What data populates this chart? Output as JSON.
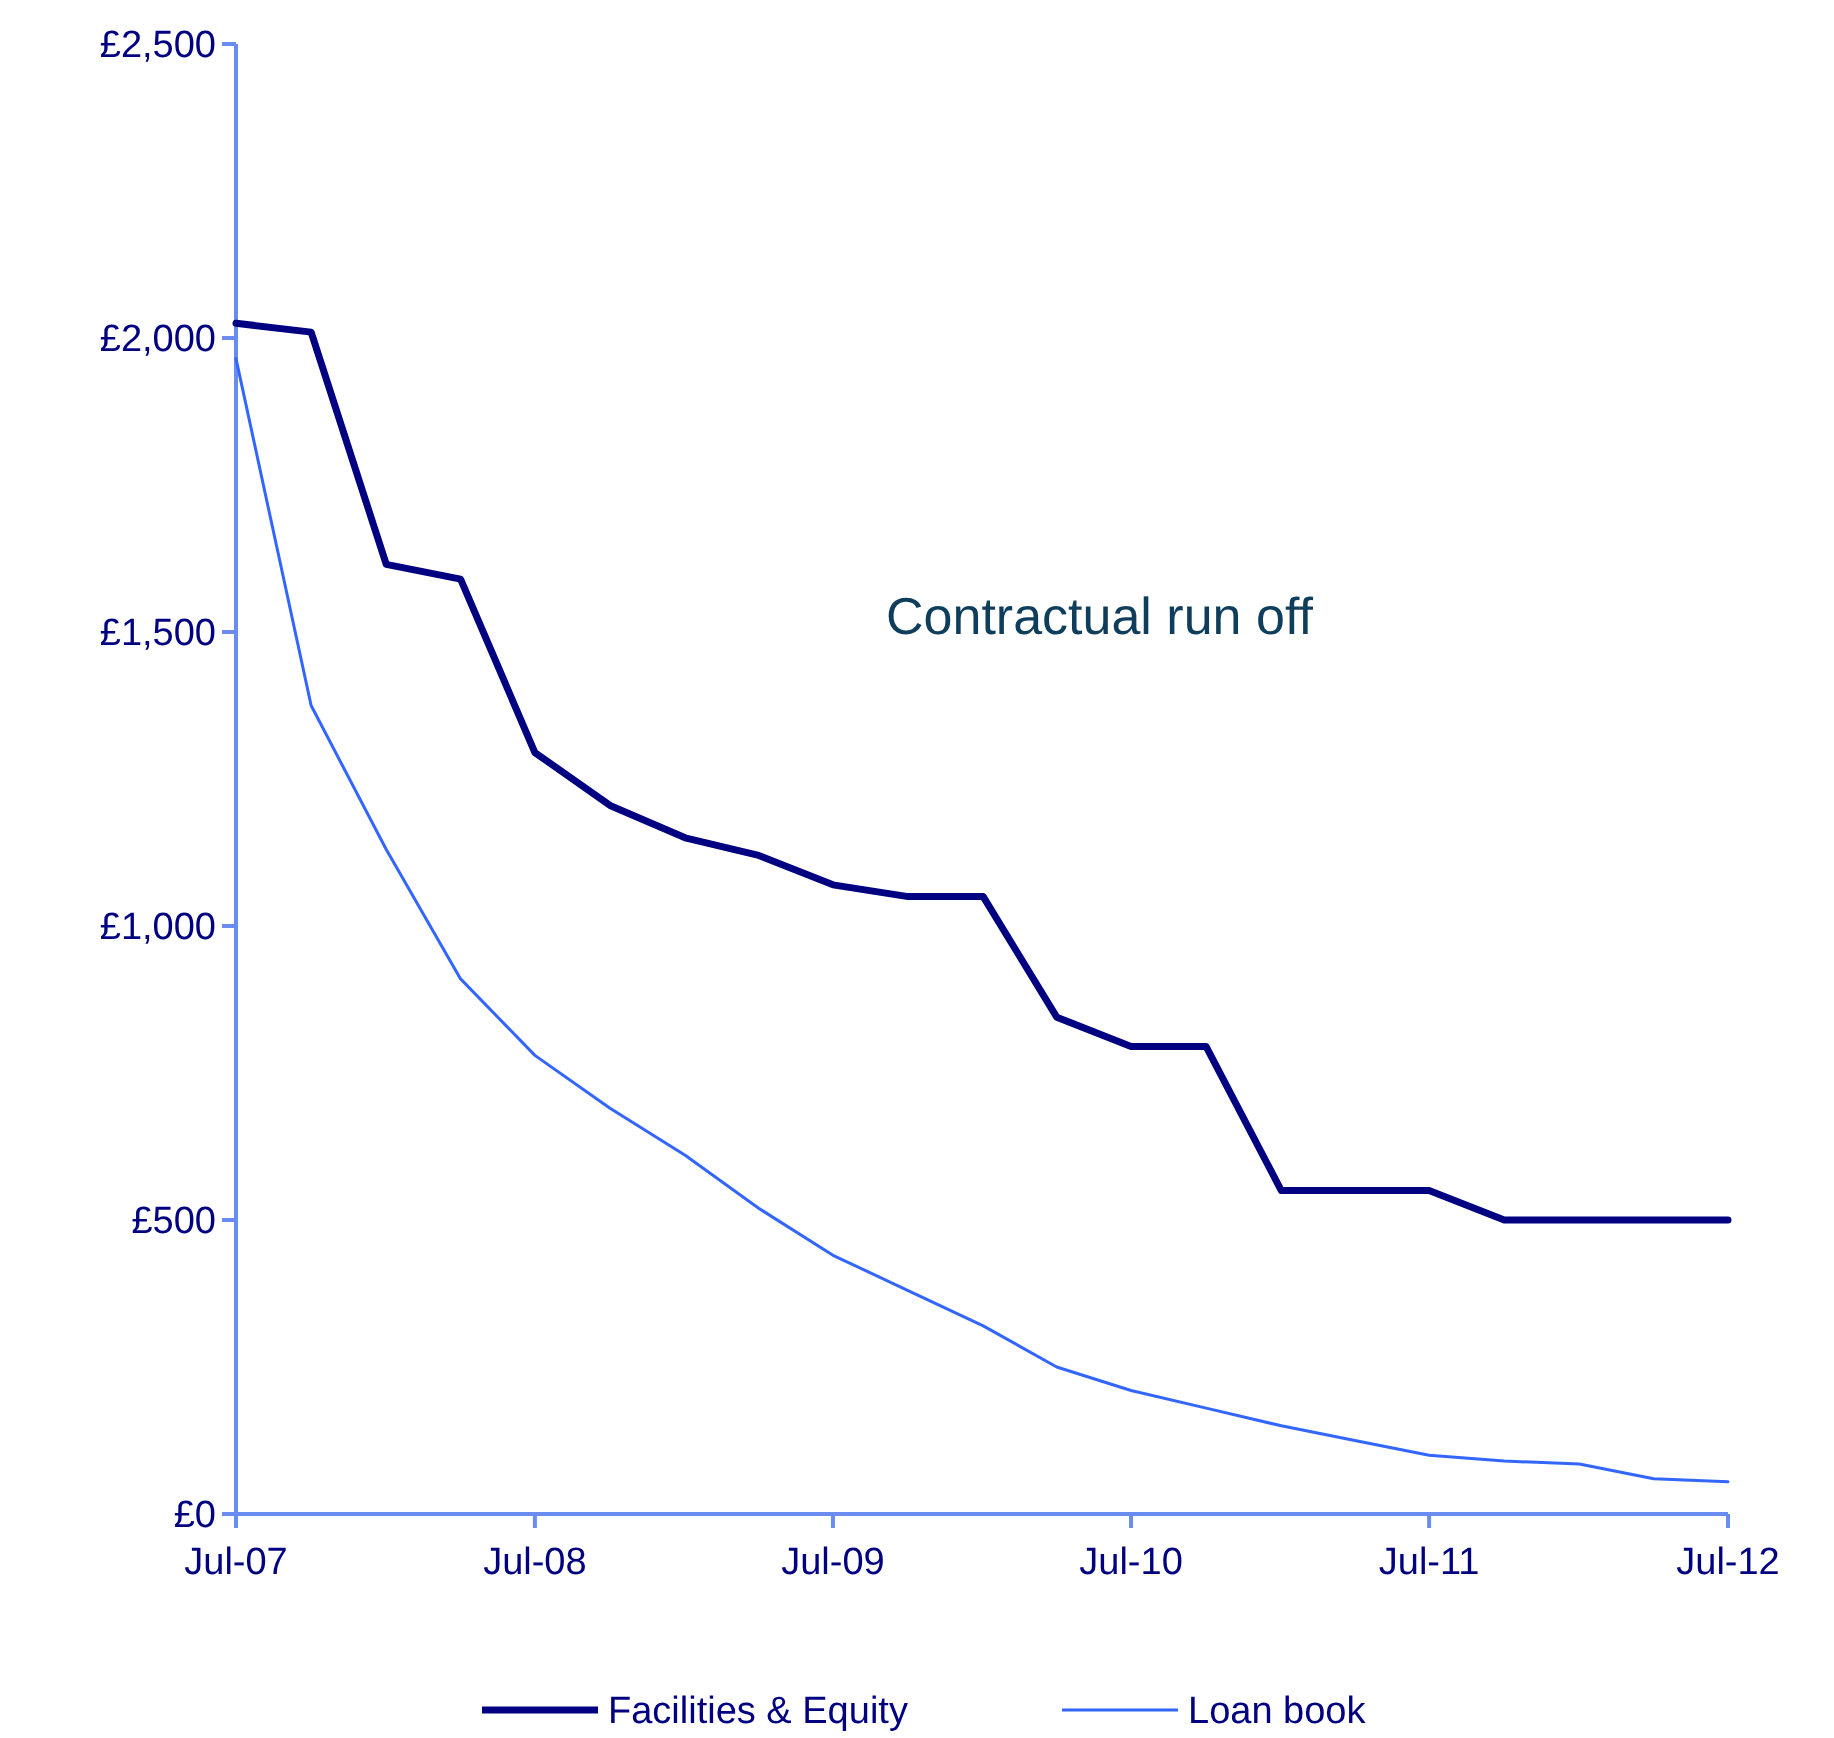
{
  "chart_data": {
    "type": "line",
    "x": [
      "2007-07",
      "2007-10",
      "2008-01",
      "2008-04",
      "2008-07",
      "2008-10",
      "2009-01",
      "2009-04",
      "2009-07",
      "2009-10",
      "2010-01",
      "2010-04",
      "2010-07",
      "2010-10",
      "2011-01",
      "2011-04",
      "2011-07",
      "2011-10",
      "2012-01",
      "2012-04",
      "2012-07"
    ],
    "series": [
      {
        "name": "Facilities & Equity",
        "color": "#000080",
        "values": [
          2025,
          2010,
          1615,
          1590,
          1295,
          1205,
          1150,
          1120,
          1070,
          1050,
          1050,
          845,
          795,
          795,
          550,
          550,
          550,
          500,
          500,
          500,
          500
        ]
      },
      {
        "name": "Loan book",
        "color": "#3366ff",
        "values": [
          1965,
          1375,
          1130,
          910,
          780,
          690,
          610,
          520,
          440,
          380,
          320,
          250,
          210,
          180,
          150,
          125,
          100,
          90,
          85,
          60,
          55
        ]
      }
    ],
    "xlim": [
      "2007-07",
      "2012-07"
    ],
    "xticks": [
      {
        "value": "2007-07",
        "label": "Jul-07"
      },
      {
        "value": "2008-07",
        "label": "Jul-08"
      },
      {
        "value": "2009-07",
        "label": "Jul-09"
      },
      {
        "value": "2010-07",
        "label": "Jul-10"
      },
      {
        "value": "2011-07",
        "label": "Jul-11"
      },
      {
        "value": "2012-07",
        "label": "Jul-12"
      }
    ],
    "ylim": [
      0,
      2500
    ],
    "yticks": [
      {
        "value": 0,
        "label": "£0"
      },
      {
        "value": 500,
        "label": "£500"
      },
      {
        "value": 1000,
        "label": "£1,000"
      },
      {
        "value": 1500,
        "label": "£1,500"
      },
      {
        "value": 2000,
        "label": "£2,000"
      },
      {
        "value": 2500,
        "label": "£2,500"
      }
    ],
    "annotations": [
      "Contractual run off"
    ],
    "grid": false,
    "legend": "bottom",
    "marker": "none",
    "line_style": "solid"
  }
}
